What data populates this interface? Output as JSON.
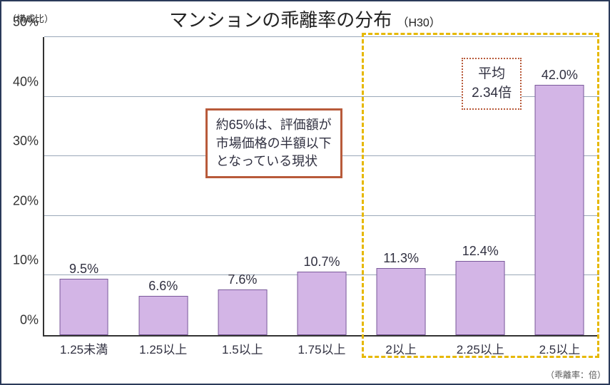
{
  "chart": {
    "type": "bar",
    "title": "マンションの乖離率の分布",
    "subtitle": "（H30）",
    "ylabel": "（構成比）",
    "xlabel": "（乖離率：倍）",
    "ylim": [
      0,
      50
    ],
    "ytick_step": 10,
    "ytick_suffix": "%",
    "grid_color": "#9aa8b8",
    "axis_color": "#333333",
    "background_color": "#ffffff",
    "bar_color": "#d3b5e6",
    "bar_border_color": "#7a5a9a",
    "bar_width_pct": 62,
    "value_label_suffix": "%",
    "categories": [
      "1.25未満",
      "1.25以上",
      "1.5以上",
      "1.75以上",
      "2以上",
      "2.25以上",
      "2.5以上"
    ],
    "values": [
      9.5,
      6.6,
      7.6,
      10.7,
      11.3,
      12.4,
      42.0
    ],
    "value_labels": [
      "9.5%",
      "6.6%",
      "7.6%",
      "10.7%",
      "11.3%",
      "12.4%",
      "42.0%"
    ],
    "label_fontsize": 18,
    "title_fontsize": 26,
    "tick_fontsize": 18
  },
  "annotation": {
    "lines": [
      "約65%は、評価額が",
      "市場価格の半額以下",
      "となっている現状"
    ],
    "border_color": "#b85a3a",
    "border_width": 3,
    "bg_color": "#ffffff"
  },
  "average_box": {
    "line1": "平均",
    "line2": "2.34倍",
    "border_color": "#b85a3a",
    "border_width": 2,
    "border_style": "dotted",
    "bg_color": "#ffffff"
  },
  "highlight_group": {
    "from_index": 4,
    "to_index": 6,
    "border_color": "#e6b800",
    "border_width": 3,
    "border_style": "dashed"
  }
}
